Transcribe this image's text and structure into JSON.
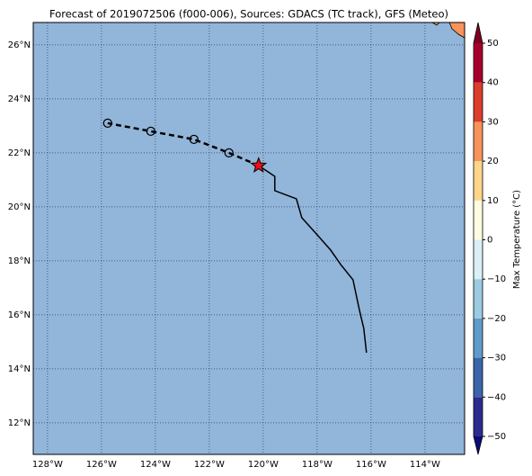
{
  "title": "Forecast of 2019072506 (f000-006), Sources: GDACS (TC track), GFS (Meteo)",
  "map": {
    "xlim": [
      -128.53,
      -112.53
    ],
    "ylim": [
      10.83,
      26.83
    ],
    "xticks": [
      {
        "value": -128,
        "label": "128°W"
      },
      {
        "value": -126,
        "label": "126°W"
      },
      {
        "value": -124,
        "label": "124°W"
      },
      {
        "value": -122,
        "label": "122°W"
      },
      {
        "value": -120,
        "label": "120°W"
      },
      {
        "value": -118,
        "label": "118°W"
      },
      {
        "value": -116,
        "label": "116°W"
      },
      {
        "value": -114,
        "label": "114°W"
      }
    ],
    "yticks": [
      {
        "value": 12,
        "label": "12°N"
      },
      {
        "value": 14,
        "label": "14°N"
      },
      {
        "value": 16,
        "label": "16°N"
      },
      {
        "value": 18,
        "label": "18°N"
      },
      {
        "value": 20,
        "label": "20°N"
      },
      {
        "value": 22,
        "label": "22°N"
      },
      {
        "value": 24,
        "label": "24°N"
      },
      {
        "value": 26,
        "label": "26°N"
      }
    ],
    "ocean_color": "#92b5da",
    "track": {
      "lon": [
        -116.17,
        -116.27,
        -116.43,
        -116.67,
        -117.1,
        -117.5,
        -118.03,
        -118.57,
        -118.77,
        -119.57,
        -119.57,
        -120.17
      ],
      "lat": [
        14.6,
        15.5,
        16.17,
        17.3,
        17.83,
        18.4,
        19.0,
        19.6,
        20.3,
        20.6,
        21.13,
        21.53
      ]
    },
    "forecast": {
      "lon": [
        -121.27,
        -122.57,
        -124.17,
        -125.77
      ],
      "lat": [
        22.0,
        22.5,
        22.8,
        23.1
      ]
    },
    "star_color": "#e8101a"
  },
  "colorbar": {
    "label": "Max Temperature (°C)",
    "lim": [
      -50,
      50
    ],
    "ticks": [
      {
        "value": -50,
        "label": "−50"
      },
      {
        "value": -40,
        "label": "−40"
      },
      {
        "value": -30,
        "label": "−30"
      },
      {
        "value": -20,
        "label": "−20"
      },
      {
        "value": -10,
        "label": "−10"
      },
      0,
      10,
      20,
      30,
      40,
      50
    ],
    "colors": [
      "#2b2b8e",
      "#3a65a9",
      "#5f9cc9",
      "#9acbe1",
      "#daeff6",
      "#fffbe1",
      "#fdd58b",
      "#f7935b",
      "#dc3d2d",
      "#a60029"
    ],
    "under_color": "#0b0b78",
    "over_color": "#7c0022"
  }
}
